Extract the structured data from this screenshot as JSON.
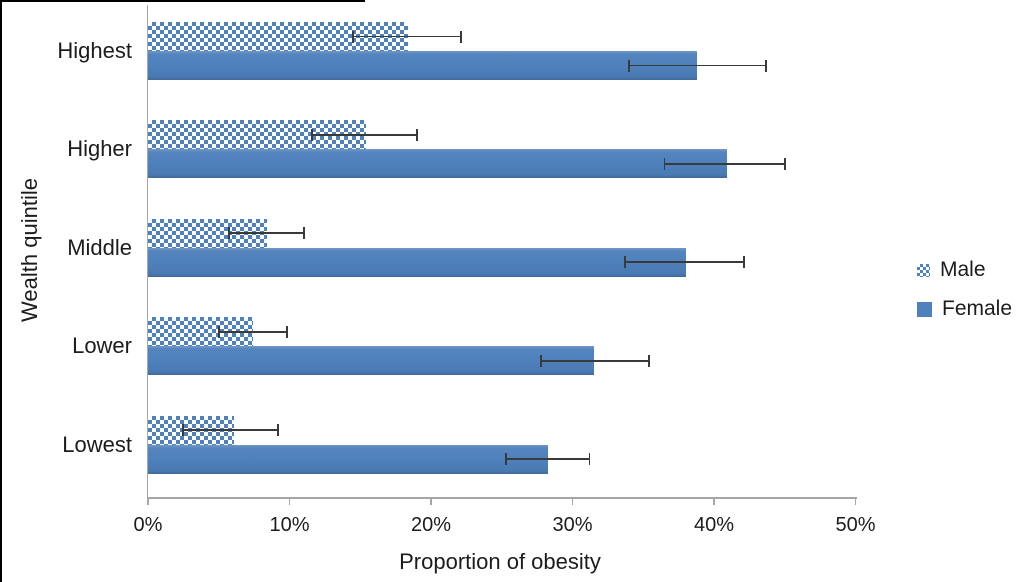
{
  "chart_data": {
    "type": "bar",
    "orientation": "horizontal",
    "xlabel": "Proportion of obesity",
    "ylabel": "Wealth quintile",
    "categories": [
      "Highest",
      "Higher",
      "Middle",
      "Lower",
      "Lowest"
    ],
    "x_ticks": [
      0,
      10,
      20,
      30,
      40,
      50
    ],
    "x_tick_labels": [
      "0%",
      "10%",
      "20%",
      "30%",
      "40%",
      "50%"
    ],
    "xlim": [
      0,
      50
    ],
    "grid": false,
    "legend_position": "right-center",
    "series": [
      {
        "name": "Male",
        "style": "checker-pattern",
        "color": "#4f81bd",
        "values": [
          18.4,
          15.4,
          8.4,
          7.4,
          6.1
        ],
        "error_low": [
          14.5,
          11.6,
          5.7,
          5.0,
          2.5
        ],
        "error_high": [
          22.1,
          19.0,
          11.0,
          9.8,
          9.2
        ]
      },
      {
        "name": "Female",
        "style": "solid",
        "color": "#4f81bd",
        "values": [
          38.8,
          40.9,
          38.0,
          31.5,
          28.3
        ],
        "error_low": [
          34.0,
          36.5,
          33.7,
          27.8,
          25.3
        ],
        "error_high": [
          43.7,
          45.0,
          42.1,
          35.4,
          31.2
        ]
      }
    ],
    "error_bar_color": "#3a3a3a",
    "axis_line_color": "#a6a6a6",
    "text_color": "#1c1c1c",
    "background": "#ffffff"
  }
}
